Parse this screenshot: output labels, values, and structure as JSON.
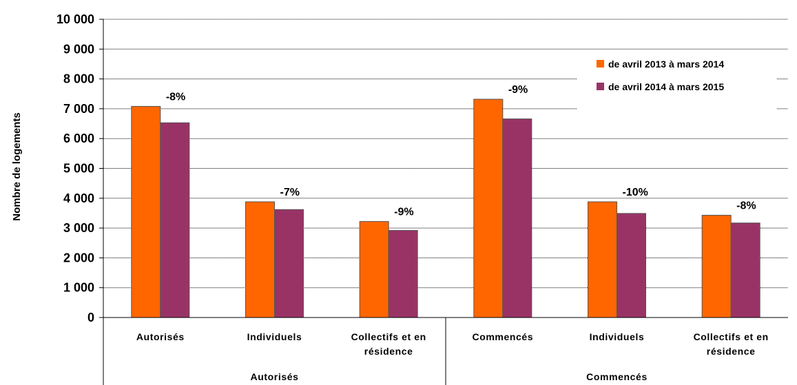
{
  "chart_data": {
    "type": "bar",
    "ylabel": "Nombre de logements",
    "ylim": [
      0,
      10000
    ],
    "yticks": [
      0,
      1000,
      2000,
      3000,
      4000,
      5000,
      6000,
      7000,
      8000,
      9000,
      10000
    ],
    "ytick_labels": [
      "0",
      "1 000",
      "2 000",
      "3 000",
      "4 000",
      "5 000",
      "6 000",
      "7 000",
      "8 000",
      "9 000",
      "10 000"
    ],
    "grid": "horizontal dotted",
    "legend_position": "top-right",
    "categories": [
      {
        "label": [
          "Autorisés"
        ],
        "group": "Autorisés"
      },
      {
        "label": [
          "Individuels"
        ],
        "group": "Autorisés"
      },
      {
        "label": [
          "Collectifs et en",
          "résidence"
        ],
        "group": "Autorisés"
      },
      {
        "label": [
          "Commencés"
        ],
        "group": "Commencés"
      },
      {
        "label": [
          "Individuels"
        ],
        "group": "Commencés"
      },
      {
        "label": [
          "Collectifs et en",
          "résidence"
        ],
        "group": "Commencés"
      }
    ],
    "groups": [
      "Autorisés",
      "Commencés"
    ],
    "series": [
      {
        "name": "de avril 2013 à mars 2014",
        "color": "#ff6600",
        "values": [
          7080,
          3880,
          3220,
          7320,
          3880,
          3430
        ]
      },
      {
        "name": "de avril 2014 à mars 2015",
        "color": "#993366",
        "values": [
          6530,
          3620,
          2920,
          6660,
          3490,
          3170
        ]
      }
    ],
    "change_labels": [
      "-8%",
      "-7%",
      "-9%",
      "-9%",
      "-10%",
      "-8%"
    ]
  }
}
